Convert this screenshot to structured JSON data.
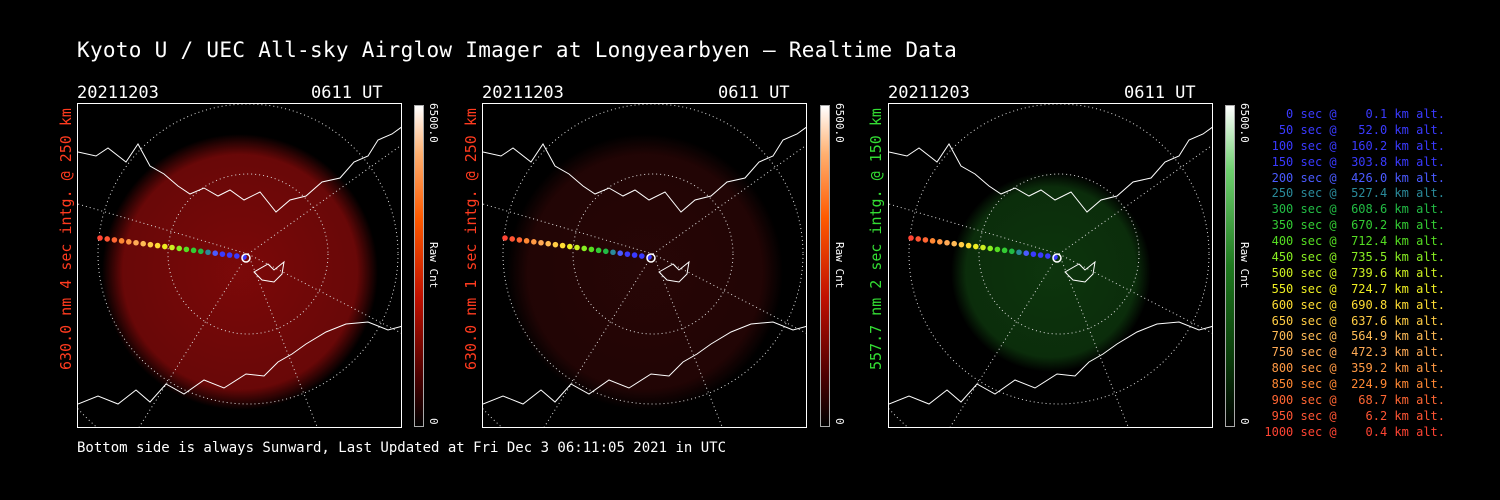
{
  "title": "Kyoto U / UEC All-sky Airglow Imager at Longyearbyen — Realtime Data",
  "footer": "Bottom side is always Sunward, Last Updated at Fri Dec  3 06:11:05 2021 in UTC",
  "panels": [
    {
      "date": "20211203",
      "time": "0611 UT",
      "side_label": "630.0 nm 4 sec intg. @ 250 km",
      "label_color": "#ff3b1f",
      "colorbar_max": "6500.0",
      "colorbar_min": "0",
      "colorbar_unit": "Raw Cnt",
      "tint": "#e01010",
      "glow_opacity": 0.55
    },
    {
      "date": "20211203",
      "time": "0611 UT",
      "side_label": "630.0 nm 1 sec intg. @ 250 km",
      "label_color": "#ff3b1f",
      "colorbar_max": "6500.0",
      "colorbar_min": "0",
      "colorbar_unit": "Raw Cnt",
      "tint": "#701010",
      "glow_opacity": 0.35
    },
    {
      "date": "20211203",
      "time": "0611 UT",
      "side_label": "557.7 nm 2 sec intg. @ 150 km",
      "label_color": "#33dd33",
      "colorbar_max": "6500.0",
      "colorbar_min": "0",
      "colorbar_unit": "Raw Cnt",
      "tint": "#1a6a1a",
      "glow_opacity": 0.5
    }
  ],
  "legend": [
    {
      "text": "   0 sec @    0.1 km alt.",
      "color": "#3a3aff"
    },
    {
      "text": "  50 sec @   52.0 km alt.",
      "color": "#3a3aff"
    },
    {
      "text": " 100 sec @  160.2 km alt.",
      "color": "#3a3aff"
    },
    {
      "text": " 150 sec @  303.8 km alt.",
      "color": "#3a3aff"
    },
    {
      "text": " 200 sec @  426.0 km alt.",
      "color": "#4a5aff"
    },
    {
      "text": " 250 sec @  527.4 km alt.",
      "color": "#2a8a9a"
    },
    {
      "text": " 300 sec @  608.6 km alt.",
      "color": "#22bb44"
    },
    {
      "text": " 350 sec @  670.2 km alt.",
      "color": "#33cc33"
    },
    {
      "text": " 400 sec @  712.4 km alt.",
      "color": "#55dd22"
    },
    {
      "text": " 450 sec @  735.5 km alt.",
      "color": "#88ee22"
    },
    {
      "text": " 500 sec @  739.6 km alt.",
      "color": "#ccee22"
    },
    {
      "text": " 550 sec @  724.7 km alt.",
      "color": "#eeee22"
    },
    {
      "text": " 600 sec @  690.8 km alt.",
      "color": "#ffdd33"
    },
    {
      "text": " 650 sec @  637.6 km alt.",
      "color": "#ffcc44"
    },
    {
      "text": " 700 sec @  564.9 km alt.",
      "color": "#ffbb55"
    },
    {
      "text": " 750 sec @  472.3 km alt.",
      "color": "#ffaa55"
    },
    {
      "text": " 800 sec @  359.2 km alt.",
      "color": "#ff9944"
    },
    {
      "text": " 850 sec @  224.9 km alt.",
      "color": "#ff8833"
    },
    {
      "text": " 900 sec @   68.7 km alt.",
      "color": "#ff6633"
    },
    {
      "text": " 950 sec @    6.2 km alt.",
      "color": "#ff5533"
    },
    {
      "text": "1000 sec @    0.4 km alt.",
      "color": "#ff4433"
    }
  ]
}
